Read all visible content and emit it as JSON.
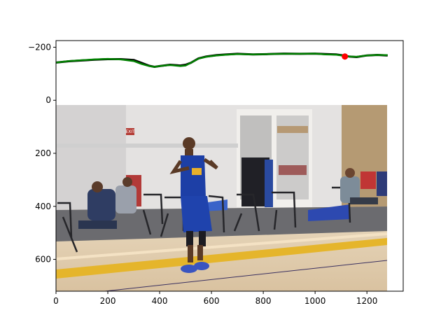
{
  "chart_data": {
    "type": "line",
    "title": "",
    "xlabel": "",
    "ylabel": "",
    "xlim": [
      0,
      1340
    ],
    "ylim": [
      720,
      -225
    ],
    "y_inverted": true,
    "grid": false,
    "background_image": {
      "description": "photo of a basketball player on an indoor court",
      "extent_x": [
        0,
        1280
      ],
      "extent_y": [
        720,
        0
      ],
      "sign_text": "EXIT"
    },
    "x_ticks": [
      0,
      200,
      400,
      600,
      800,
      1000,
      1200
    ],
    "x_tick_labels": [
      "0",
      "200",
      "400",
      "600",
      "800",
      "1000",
      "1200"
    ],
    "y_ticks": [
      -200,
      0,
      200,
      400,
      600
    ],
    "y_tick_labels": [
      "−200",
      "0",
      "200",
      "400",
      "600"
    ],
    "series": [
      {
        "color": "#000000",
        "x": [
          0,
          50,
          100,
          150,
          200,
          250,
          300,
          330,
          360,
          380,
          400,
          440,
          480,
          500,
          520,
          550,
          580,
          620,
          660,
          700,
          760,
          820,
          880,
          940,
          1000,
          1040,
          1080,
          1110,
          1130,
          1160,
          1200,
          1240,
          1280
        ],
        "y": [
          -142,
          -147,
          -150,
          -153,
          -155,
          -155,
          -152,
          -141,
          -130,
          -126,
          -129,
          -134,
          -131,
          -134,
          -141,
          -158,
          -165,
          -170,
          -173,
          -175,
          -173,
          -174,
          -176,
          -175,
          -176,
          -174,
          -173,
          -169,
          -165,
          -163,
          -169,
          -171,
          -169
        ]
      },
      {
        "color": "#008000",
        "x": [
          0,
          50,
          100,
          150,
          200,
          250,
          300,
          330,
          360,
          380,
          400,
          440,
          480,
          500,
          520,
          550,
          580,
          620,
          660,
          700,
          760,
          820,
          880,
          940,
          1000,
          1040,
          1080,
          1110,
          1130,
          1160,
          1200,
          1240,
          1280
        ],
        "y": [
          -142,
          -148,
          -151,
          -154,
          -156,
          -154,
          -148,
          -137,
          -129,
          -126,
          -129,
          -133,
          -129,
          -131,
          -141,
          -157,
          -164,
          -169,
          -172,
          -174,
          -173,
          -174,
          -175,
          -175,
          -176,
          -173,
          -172,
          -168,
          -165,
          -164,
          -169,
          -171,
          -170
        ]
      }
    ],
    "highlight_point": {
      "x": 1115,
      "y": -165,
      "color": "#ff0000"
    }
  }
}
